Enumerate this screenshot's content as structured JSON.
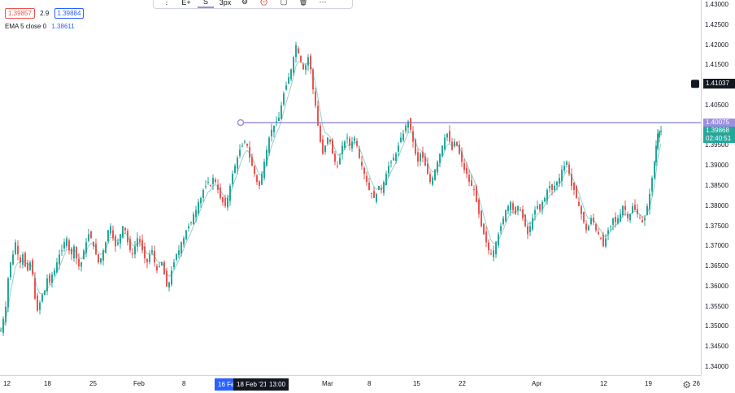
{
  "legend": {
    "top_line": "",
    "bid": "1.39857",
    "spread": "2.9",
    "ask": "1.39884",
    "ema_label": "EMA 5 close 0",
    "ema_value": "1.38611"
  },
  "toolbar": {
    "items": [
      {
        "icon": "drag-handle-icon",
        "label": ""
      },
      {
        "icon": "add-text-icon",
        "label": "E+"
      },
      {
        "icon": "line-color-icon",
        "label": "S"
      },
      {
        "icon": "line-width-icon",
        "label": "3px"
      },
      {
        "icon": "settings-icon",
        "label": ""
      },
      {
        "icon": "alert-icon",
        "label": ""
      },
      {
        "icon": "lock-icon",
        "label": ""
      },
      {
        "icon": "delete-icon",
        "label": ""
      },
      {
        "icon": "more-icon",
        "label": ""
      }
    ]
  },
  "price_scale": {
    "ticks": [
      "1.43000",
      "1.42500",
      "1.42000",
      "1.41500",
      "1.41000",
      "1.40500",
      "1.40000",
      "1.39500",
      "1.39000",
      "1.38500",
      "1.38000",
      "1.37500",
      "1.37000",
      "1.36500",
      "1.36000",
      "1.35500",
      "1.35000",
      "1.34500",
      "1.34000"
    ],
    "marker_price": "1.41037",
    "hline_price": "1.40075",
    "last_price": "1.39868",
    "countdown": "02:40:51"
  },
  "time_scale": {
    "ticks": [
      "12",
      "18",
      "25",
      "Feb",
      "8",
      "16 Fe",
      "18 Feb '21",
      "13:00",
      "Mar",
      "8",
      "15",
      "22",
      "Apr",
      "12",
      "19",
      "26"
    ],
    "highlight_start": "16 Fe",
    "highlight_end": "18 Feb '21",
    "highlight_time": "13:00"
  },
  "colors": {
    "up": "#26a69a",
    "down": "#ef5350",
    "hline": "#9c8fe0",
    "highlight": "#2962ff",
    "marker": "#131722"
  },
  "chart_data": {
    "type": "candlestick",
    "symbol_pair": "price",
    "ylim": [
      1.34,
      1.43
    ],
    "close_path": [
      [
        0,
        1.349
      ],
      [
        3,
        1.352
      ],
      [
        6,
        1.355
      ],
      [
        9,
        1.362
      ],
      [
        12,
        1.366
      ],
      [
        15,
        1.368
      ],
      [
        18,
        1.371
      ],
      [
        21,
        1.368
      ],
      [
        24,
        1.366
      ],
      [
        27,
        1.368
      ],
      [
        30,
        1.365
      ],
      [
        33,
        1.364
      ],
      [
        36,
        1.366
      ],
      [
        39,
        1.363
      ],
      [
        42,
        1.357
      ],
      [
        45,
        1.354
      ],
      [
        48,
        1.356
      ],
      [
        51,
        1.358
      ],
      [
        54,
        1.359
      ],
      [
        57,
        1.362
      ],
      [
        60,
        1.361
      ],
      [
        63,
        1.363
      ],
      [
        66,
        1.364
      ],
      [
        69,
        1.366
      ],
      [
        72,
        1.368
      ],
      [
        75,
        1.369
      ],
      [
        78,
        1.371
      ],
      [
        81,
        1.372
      ],
      [
        84,
        1.369
      ],
      [
        87,
        1.368
      ],
      [
        90,
        1.37
      ],
      [
        93,
        1.367
      ],
      [
        96,
        1.365
      ],
      [
        99,
        1.366
      ],
      [
        102,
        1.369
      ],
      [
        105,
        1.371
      ],
      [
        108,
        1.373
      ],
      [
        111,
        1.372
      ],
      [
        114,
        1.37
      ],
      [
        117,
        1.368
      ],
      [
        120,
        1.366
      ],
      [
        123,
        1.367
      ],
      [
        126,
        1.369
      ],
      [
        129,
        1.371
      ],
      [
        132,
        1.374
      ],
      [
        135,
        1.375
      ],
      [
        138,
        1.372
      ],
      [
        141,
        1.37
      ],
      [
        144,
        1.371
      ],
      [
        147,
        1.373
      ],
      [
        150,
        1.375
      ],
      [
        153,
        1.374
      ],
      [
        156,
        1.371
      ],
      [
        159,
        1.369
      ],
      [
        162,
        1.368
      ],
      [
        165,
        1.37
      ],
      [
        168,
        1.372
      ],
      [
        171,
        1.371
      ],
      [
        174,
        1.369
      ],
      [
        177,
        1.367
      ],
      [
        180,
        1.366
      ],
      [
        183,
        1.368
      ],
      [
        186,
        1.369
      ],
      [
        189,
        1.366
      ],
      [
        192,
        1.364
      ],
      [
        195,
        1.365
      ],
      [
        198,
        1.366
      ],
      [
        201,
        1.363
      ],
      [
        204,
        1.36
      ],
      [
        207,
        1.361
      ],
      [
        210,
        1.364
      ],
      [
        213,
        1.366
      ],
      [
        216,
        1.368
      ],
      [
        219,
        1.369
      ],
      [
        222,
        1.371
      ],
      [
        225,
        1.372
      ],
      [
        228,
        1.374
      ],
      [
        231,
        1.375
      ],
      [
        234,
        1.376
      ],
      [
        237,
        1.378
      ],
      [
        240,
        1.379
      ],
      [
        243,
        1.381
      ],
      [
        246,
        1.382
      ],
      [
        249,
        1.384
      ],
      [
        252,
        1.385
      ],
      [
        255,
        1.386
      ],
      [
        258,
        1.385
      ],
      [
        261,
        1.387
      ],
      [
        264,
        1.386
      ],
      [
        267,
        1.384
      ],
      [
        270,
        1.382
      ],
      [
        273,
        1.381
      ],
      [
        276,
        1.38
      ],
      [
        279,
        1.382
      ],
      [
        282,
        1.385
      ],
      [
        285,
        1.388
      ],
      [
        288,
        1.39
      ],
      [
        291,
        1.392
      ],
      [
        294,
        1.394
      ],
      [
        297,
        1.395
      ],
      [
        300,
        1.396
      ],
      [
        303,
        1.395
      ],
      [
        306,
        1.392
      ],
      [
        309,
        1.39
      ],
      [
        312,
        1.388
      ],
      [
        315,
        1.386
      ],
      [
        318,
        1.385
      ],
      [
        321,
        1.388
      ],
      [
        324,
        1.391
      ],
      [
        327,
        1.394
      ],
      [
        330,
        1.397
      ],
      [
        333,
        1.399
      ],
      [
        336,
        1.4
      ],
      [
        339,
        1.401
      ],
      [
        342,
        1.402
      ],
      [
        345,
        1.405
      ],
      [
        348,
        1.408
      ],
      [
        351,
        1.41
      ],
      [
        354,
        1.412
      ],
      [
        357,
        1.414
      ],
      [
        360,
        1.417
      ],
      [
        363,
        1.42
      ],
      [
        366,
        1.418
      ],
      [
        369,
        1.416
      ],
      [
        372,
        1.414
      ],
      [
        375,
        1.415
      ],
      [
        378,
        1.417
      ],
      [
        381,
        1.414
      ],
      [
        384,
        1.409
      ],
      [
        387,
        1.405
      ],
      [
        390,
        1.4
      ],
      [
        393,
        1.396
      ],
      [
        396,
        1.393
      ],
      [
        399,
        1.395
      ],
      [
        402,
        1.397
      ],
      [
        405,
        1.396
      ],
      [
        408,
        1.393
      ],
      [
        411,
        1.391
      ],
      [
        414,
        1.39
      ],
      [
        417,
        1.392
      ],
      [
        420,
        1.395
      ],
      [
        423,
        1.396
      ],
      [
        426,
        1.397
      ],
      [
        429,
        1.395
      ],
      [
        432,
        1.396
      ],
      [
        435,
        1.397
      ],
      [
        438,
        1.395
      ],
      [
        441,
        1.392
      ],
      [
        444,
        1.39
      ],
      [
        447,
        1.388
      ],
      [
        450,
        1.386
      ],
      [
        453,
        1.384
      ],
      [
        456,
        1.383
      ],
      [
        459,
        1.382
      ],
      [
        462,
        1.383
      ],
      [
        465,
        1.385
      ],
      [
        468,
        1.384
      ],
      [
        471,
        1.386
      ],
      [
        474,
        1.388
      ],
      [
        477,
        1.39
      ],
      [
        480,
        1.391
      ],
      [
        483,
        1.392
      ],
      [
        486,
        1.393
      ],
      [
        489,
        1.395
      ],
      [
        492,
        1.397
      ],
      [
        495,
        1.398
      ],
      [
        498,
        1.4
      ],
      [
        501,
        1.401
      ],
      [
        504,
        1.399
      ],
      [
        507,
        1.396
      ],
      [
        510,
        1.393
      ],
      [
        513,
        1.391
      ],
      [
        516,
        1.393
      ],
      [
        519,
        1.392
      ],
      [
        522,
        1.39
      ],
      [
        525,
        1.388
      ],
      [
        528,
        1.386
      ],
      [
        531,
        1.387
      ],
      [
        534,
        1.389
      ],
      [
        537,
        1.391
      ],
      [
        540,
        1.393
      ],
      [
        543,
        1.395
      ],
      [
        546,
        1.397
      ],
      [
        549,
        1.398
      ],
      [
        552,
        1.396
      ],
      [
        555,
        1.394
      ],
      [
        558,
        1.396
      ],
      [
        561,
        1.395
      ],
      [
        564,
        1.393
      ],
      [
        567,
        1.391
      ],
      [
        570,
        1.389
      ],
      [
        573,
        1.388
      ],
      [
        576,
        1.386
      ],
      [
        579,
        1.385
      ],
      [
        582,
        1.384
      ],
      [
        585,
        1.381
      ],
      [
        588,
        1.378
      ],
      [
        591,
        1.375
      ],
      [
        594,
        1.373
      ],
      [
        597,
        1.371
      ],
      [
        600,
        1.369
      ],
      [
        603,
        1.368
      ],
      [
        606,
        1.369
      ],
      [
        609,
        1.371
      ],
      [
        612,
        1.373
      ],
      [
        615,
        1.375
      ],
      [
        618,
        1.377
      ],
      [
        621,
        1.379
      ],
      [
        624,
        1.38
      ],
      [
        627,
        1.381
      ],
      [
        630,
        1.379
      ],
      [
        633,
        1.378
      ],
      [
        636,
        1.38
      ],
      [
        639,
        1.379
      ],
      [
        642,
        1.377
      ],
      [
        645,
        1.375
      ],
      [
        648,
        1.373
      ],
      [
        651,
        1.375
      ],
      [
        654,
        1.377
      ],
      [
        657,
        1.379
      ],
      [
        660,
        1.38
      ],
      [
        663,
        1.379
      ],
      [
        666,
        1.381
      ],
      [
        669,
        1.382
      ],
      [
        672,
        1.384
      ],
      [
        675,
        1.385
      ],
      [
        678,
        1.384
      ],
      [
        681,
        1.385
      ],
      [
        684,
        1.386
      ],
      [
        687,
        1.387
      ],
      [
        690,
        1.389
      ],
      [
        693,
        1.39
      ],
      [
        696,
        1.391
      ],
      [
        699,
        1.388
      ],
      [
        702,
        1.385
      ],
      [
        705,
        1.384
      ],
      [
        708,
        1.382
      ],
      [
        711,
        1.38
      ],
      [
        714,
        1.378
      ],
      [
        717,
        1.376
      ],
      [
        720,
        1.374
      ],
      [
        723,
        1.375
      ],
      [
        726,
        1.377
      ],
      [
        729,
        1.376
      ],
      [
        732,
        1.374
      ],
      [
        735,
        1.373
      ],
      [
        738,
        1.372
      ],
      [
        741,
        1.37
      ],
      [
        744,
        1.372
      ],
      [
        747,
        1.374
      ],
      [
        750,
        1.375
      ],
      [
        753,
        1.377
      ],
      [
        756,
        1.376
      ],
      [
        759,
        1.377
      ],
      [
        762,
        1.378
      ],
      [
        765,
        1.38
      ],
      [
        768,
        1.379
      ],
      [
        771,
        1.377
      ],
      [
        774,
        1.378
      ],
      [
        777,
        1.38
      ],
      [
        780,
        1.379
      ],
      [
        783,
        1.378
      ],
      [
        786,
        1.377
      ],
      [
        789,
        1.376
      ],
      [
        792,
        1.377
      ],
      [
        795,
        1.38
      ],
      [
        798,
        1.383
      ],
      [
        801,
        1.387
      ],
      [
        804,
        1.391
      ],
      [
        806,
        1.395
      ],
      [
        808,
        1.398
      ],
      [
        810,
        1.3985
      ],
      [
        812,
        1.3987
      ]
    ],
    "ema_label": "EMA 5 close 0"
  }
}
